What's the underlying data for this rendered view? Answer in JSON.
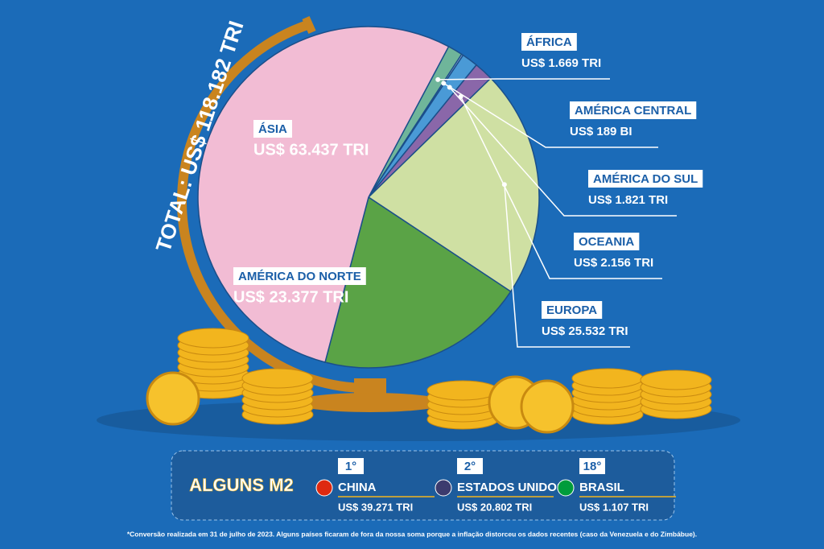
{
  "chart_data": {
    "type": "pie",
    "total_label": "TOTAL: US$ 118.182 TRI",
    "categories": [
      "ÁFRICA",
      "AMÉRICA CENTRAL",
      "AMÉRICA DO SUL",
      "OCEANIA",
      "EUROPA",
      "AMÉRICA DO NORTE",
      "ÁSIA"
    ],
    "values": [
      1.669,
      0.189,
      1.821,
      2.156,
      25.532,
      23.377,
      63.437
    ],
    "value_labels": [
      "US$ 1.669 TRI",
      "US$ 189 BI",
      "US$ 1.821 TRI",
      "US$ 2.156 TRI",
      "US$ 25.532 TRI",
      "US$ 23.377 TRI",
      "US$ 63.437 TRI"
    ],
    "colors": [
      "#6fb59a",
      "#b6c5ea",
      "#4a9ad6",
      "#8a67a9",
      "#cfe0a3",
      "#5aa346",
      "#f2bcd4"
    ]
  },
  "panel": {
    "title": "ALGUNS M2",
    "items": [
      {
        "rank": "1°",
        "name": "CHINA",
        "value": "US$ 39.271 TRI"
      },
      {
        "rank": "2°",
        "name": "ESTADOS UNIDOS",
        "value": "US$ 20.802 TRI"
      },
      {
        "rank": "18°",
        "name": "BRASIL",
        "value": "US$ 1.107 TRI"
      }
    ]
  },
  "footnote": "*Conversão realizada em 31 de julho de 2023. Alguns países ficaram de fora da nossa soma porque a inflação distorceu os dados recentes (caso da Venezuela e do Zimbábue)."
}
